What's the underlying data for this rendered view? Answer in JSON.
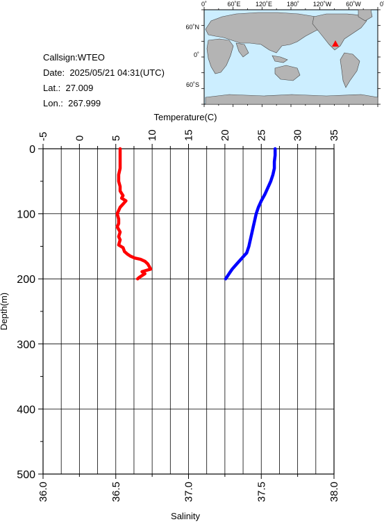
{
  "info": {
    "callsign": "Callsign:WTEO",
    "date_label": "Date:",
    "date_value": "2025/05/21 04:31(UTC)",
    "lat_label": "Lat.:",
    "lat_value": "27.009",
    "lon_label": "Lon.:",
    "lon_value": "267.999"
  },
  "map": {
    "top_labels": [
      "0˚",
      "60˚E",
      "120˚E",
      "180˚",
      "120˚W",
      "60˚W",
      "0˚"
    ],
    "left_labels": [
      "60˚N",
      "0˚",
      "60˚S"
    ],
    "ocean_color": "#cceeff",
    "land_color": "#b4b4b4",
    "marker_color": "#ff0000"
  },
  "chart_data": {
    "type": "line",
    "xlabel_top": "Temperature(C)",
    "xlabel_bottom": "Salinity",
    "ylabel": "Depth(m)",
    "temperature_ticks": [
      "-5",
      "0",
      "5",
      "10",
      "15",
      "20",
      "25",
      "30",
      "35"
    ],
    "salinity_ticks": [
      "36.0",
      "36.5",
      "37.0",
      "37.5",
      "38.0"
    ],
    "depth_ticks": [
      "0",
      "100",
      "200",
      "300",
      "400",
      "500"
    ],
    "temperature_range": [
      -5,
      35
    ],
    "salinity_range": [
      36.0,
      38.0
    ],
    "depth_range": [
      0,
      500
    ],
    "grid": true,
    "series": [
      {
        "color": "#ff0000",
        "axis": "salinity",
        "points": [
          [
            36.53,
            0
          ],
          [
            36.53,
            10
          ],
          [
            36.53,
            20
          ],
          [
            36.53,
            30
          ],
          [
            36.52,
            40
          ],
          [
            36.52,
            50
          ],
          [
            36.53,
            58
          ],
          [
            36.53,
            65
          ],
          [
            36.55,
            72
          ],
          [
            36.54,
            76
          ],
          [
            36.57,
            80
          ],
          [
            36.55,
            85
          ],
          [
            36.53,
            90
          ],
          [
            36.52,
            95
          ],
          [
            36.51,
            100
          ],
          [
            36.52,
            108
          ],
          [
            36.52,
            115
          ],
          [
            36.51,
            120
          ],
          [
            36.53,
            128
          ],
          [
            36.52,
            135
          ],
          [
            36.53,
            140
          ],
          [
            36.52,
            148
          ],
          [
            36.55,
            152
          ],
          [
            36.56,
            158
          ],
          [
            36.58,
            162
          ],
          [
            36.6,
            165
          ],
          [
            36.63,
            168
          ],
          [
            36.67,
            170
          ],
          [
            36.7,
            173
          ],
          [
            36.72,
            177
          ],
          [
            36.73,
            181
          ],
          [
            36.74,
            185
          ],
          [
            36.71,
            187
          ],
          [
            36.68,
            189
          ],
          [
            36.7,
            192
          ],
          [
            36.68,
            195
          ],
          [
            36.66,
            198
          ],
          [
            36.65,
            200
          ]
        ]
      },
      {
        "color": "#0000ff",
        "axis": "temperature",
        "points": [
          [
            26.9,
            0
          ],
          [
            26.9,
            10
          ],
          [
            26.8,
            20
          ],
          [
            26.8,
            30
          ],
          [
            26.6,
            40
          ],
          [
            26.3,
            50
          ],
          [
            25.9,
            60
          ],
          [
            25.5,
            70
          ],
          [
            25.0,
            80
          ],
          [
            24.6,
            90
          ],
          [
            24.3,
            100
          ],
          [
            24.1,
            110
          ],
          [
            23.9,
            120
          ],
          [
            23.7,
            130
          ],
          [
            23.5,
            140
          ],
          [
            23.3,
            150
          ],
          [
            23.0,
            160
          ],
          [
            22.6,
            165
          ],
          [
            22.2,
            170
          ],
          [
            21.8,
            175
          ],
          [
            21.4,
            180
          ],
          [
            21.0,
            185
          ],
          [
            20.7,
            190
          ],
          [
            20.4,
            195
          ],
          [
            20.1,
            200
          ]
        ]
      }
    ]
  }
}
